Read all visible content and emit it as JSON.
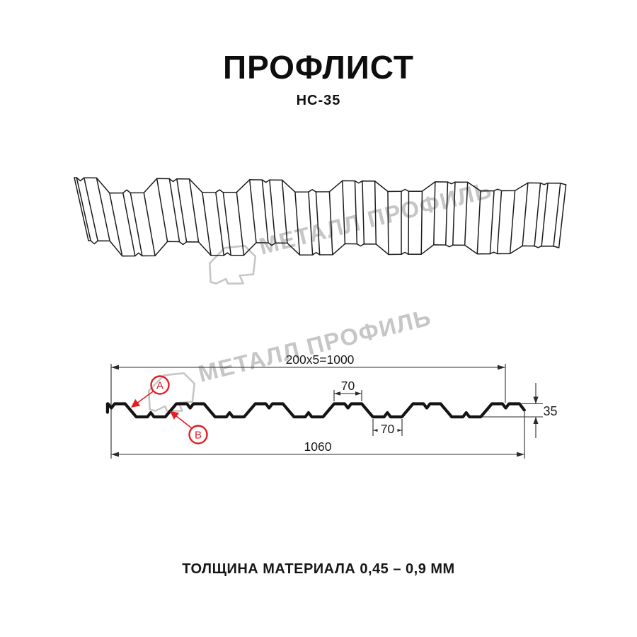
{
  "header": {
    "title": "ПРОФЛИСТ",
    "subtitle": "НС-35"
  },
  "watermark": {
    "text": "МЕТАЛЛ ПРОФИЛЬ"
  },
  "section": {
    "dim_width_top": "200x5=1000",
    "dim_rib_top": "70",
    "dim_rib_bottom": "70",
    "dim_total_width": "1060",
    "dim_height": "35",
    "label_a": "А",
    "label_b": "В"
  },
  "footer": {
    "thickness_note": "ТОЛЩИНА МАТЕРИАЛА 0,45 – 0,9 ММ"
  },
  "colors": {
    "ink": "#1a1a1a",
    "dim_line": "#2b2b2b",
    "accent_red": "#e31e24",
    "watermark_gray": "#c6c6c6",
    "background": "#ffffff"
  }
}
